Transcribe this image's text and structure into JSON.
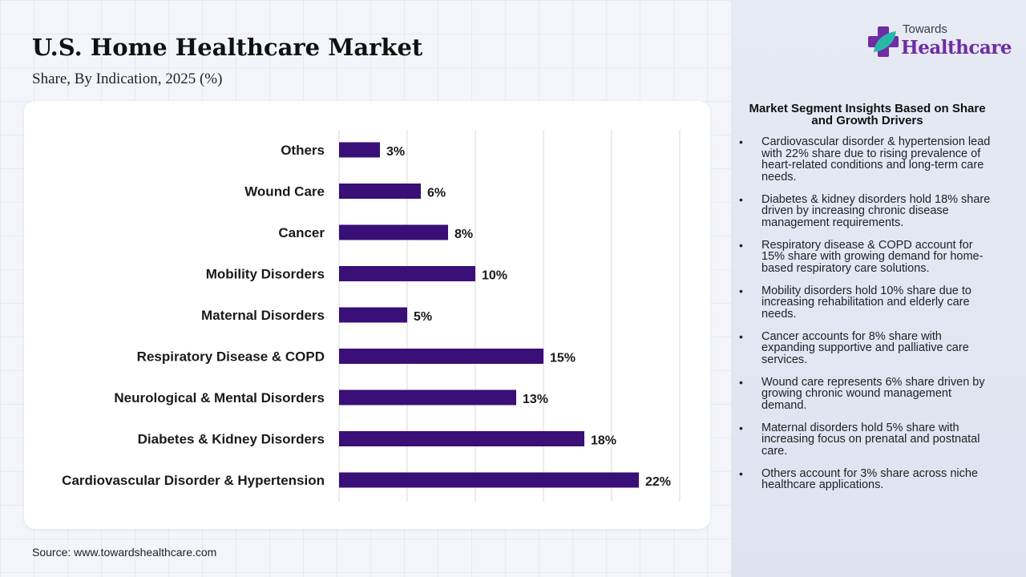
{
  "header": {
    "title": "U.S. Home Healthcare Market",
    "subtitle": "Share, By Indication, 2025 (%)"
  },
  "chart_data": {
    "type": "bar",
    "orientation": "horizontal",
    "categories": [
      "Others",
      "Wound Care",
      "Cancer",
      "Mobility Disorders",
      "Maternal Disorders",
      "Respiratory Disease & COPD",
      "Neurological & Mental Disorders",
      "Diabetes & Kidney Disorders",
      "Cardiovascular Disorder & Hypertension"
    ],
    "values": [
      3,
      6,
      8,
      10,
      5,
      15,
      13,
      18,
      22
    ],
    "value_suffix": "%",
    "xlim": [
      0,
      25
    ],
    "grid": true,
    "bar_color": "#3a0f77"
  },
  "insights": {
    "heading": "Market Segment Insights Based on Share and Growth Drivers",
    "items": [
      "Cardiovascular disorder & hypertension lead with 22% share due to rising prevalence of heart-related conditions and long-term care needs.",
      "Diabetes & kidney disorders hold 18% share driven by increasing chronic disease management requirements.",
      "Respiratory disease & COPD account for 15% share with growing demand for home-based respiratory care solutions.",
      "Mobility disorders hold 10% share due to increasing rehabilitation and elderly care needs.",
      "Cancer accounts for 8% share with expanding supportive and palliative care services.",
      "Wound care represents 6% share driven by growing chronic wound management demand.",
      "Maternal disorders hold 5% share with increasing focus on prenatal and postnatal care.",
      "Others account for 3% share across niche healthcare applications."
    ]
  },
  "logo": {
    "line1": "Towards",
    "line2": "Healthcare",
    "colors": {
      "purple": "#6f2ca3",
      "teal": "#29b8a8"
    }
  },
  "footer": {
    "source": "Source: www.towardshealthcare.com"
  }
}
